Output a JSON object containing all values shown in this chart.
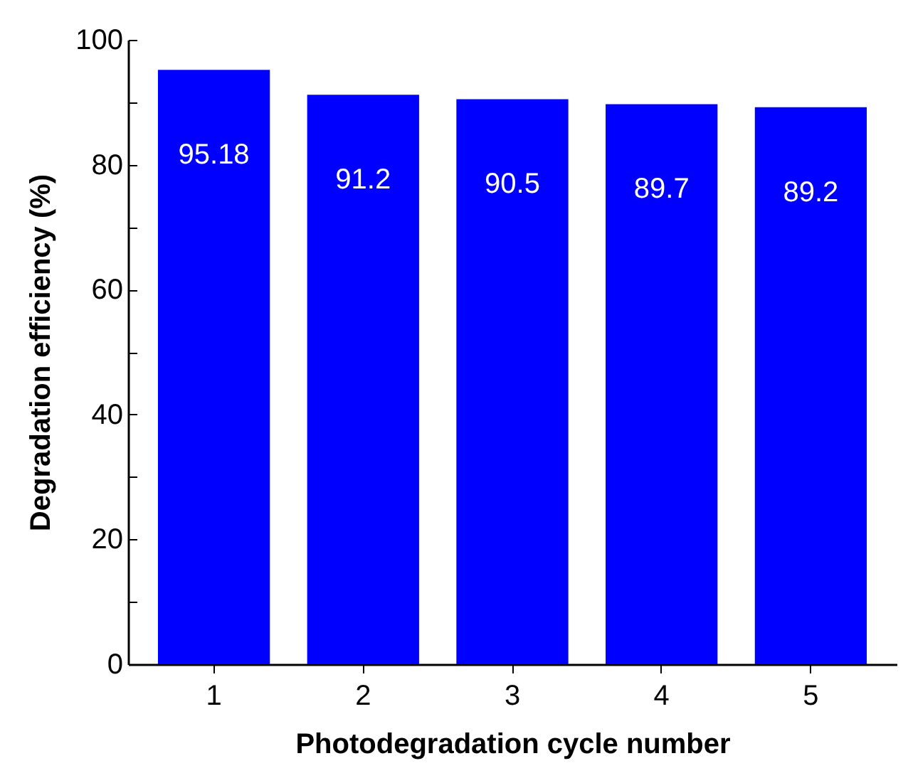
{
  "chart_data": {
    "type": "bar",
    "xlabel": "Photodegradation cycle number",
    "ylabel": "Degradation efficiency (%)",
    "categories": [
      "1",
      "2",
      "3",
      "4",
      "5"
    ],
    "values": [
      95.18,
      91.2,
      90.5,
      89.7,
      89.2
    ],
    "color": "#0000ff",
    "data_labels": true,
    "ylim": [
      0,
      100
    ],
    "yticks": [
      0,
      {
        "value": 10,
        "label": null
      },
      20,
      {
        "value": 30,
        "label": null
      },
      40,
      {
        "value": 50,
        "label": null
      },
      60,
      {
        "value": 70,
        "label": null
      },
      80,
      {
        "value": 90,
        "label": null
      },
      100
    ],
    "grid": false
  }
}
